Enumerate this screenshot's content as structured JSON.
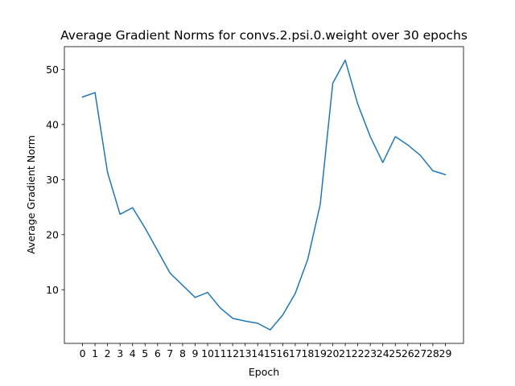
{
  "chart_data": {
    "type": "line",
    "title": "Average Gradient Norms for convs.2.psi.0.weight over 30 epochs",
    "xlabel": "Epoch",
    "ylabel": "Average Gradient Norm",
    "x": [
      0,
      1,
      2,
      3,
      4,
      5,
      6,
      7,
      8,
      9,
      10,
      11,
      12,
      13,
      14,
      15,
      16,
      17,
      18,
      19,
      20,
      21,
      22,
      23,
      24,
      25,
      26,
      27,
      28,
      29
    ],
    "x_tick_labels": [
      "0",
      "1",
      "2",
      "3",
      "4",
      "5",
      "6",
      "7",
      "8",
      "9",
      "10",
      "11",
      "12",
      "13",
      "14",
      "15",
      "16",
      "17",
      "18",
      "19",
      "20",
      "21",
      "22",
      "23",
      "24",
      "25",
      "26",
      "27",
      "28",
      "29"
    ],
    "series": [
      {
        "values": [
          45.0,
          45.8,
          31.3,
          23.7,
          24.9,
          21.2,
          17.1,
          13.0,
          10.8,
          8.6,
          9.5,
          6.7,
          4.8,
          4.3,
          3.9,
          2.7,
          5.4,
          9.3,
          15.5,
          25.5,
          47.5,
          51.7,
          43.7,
          37.8,
          33.1,
          37.8,
          36.3,
          34.4,
          31.6,
          30.9
        ],
        "color": "#1f77b4"
      }
    ],
    "xlim": [
      -1.45,
      30.45
    ],
    "ylim": [
      0.25,
      54.15
    ],
    "y_ticks": [
      10,
      20,
      30,
      40,
      50
    ],
    "grid": false,
    "legend": "none"
  }
}
